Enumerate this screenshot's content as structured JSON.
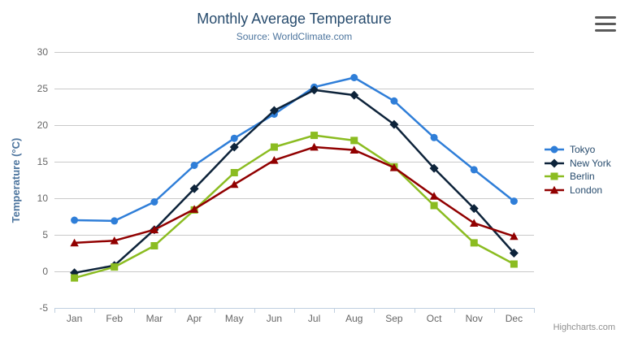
{
  "header": {
    "title": "Monthly Average Temperature",
    "subtitle": "Source: WorldClimate.com"
  },
  "credits": "Highcharts.com",
  "export_menu": {
    "icon": "hamburger-icon"
  },
  "colors": {
    "title": "#274b6d",
    "subtitle": "#4d759e",
    "axis_label": "#666666",
    "axis_title": "#4d759e",
    "grid": "#c9c9c9",
    "axis_line": "#c0d0e0",
    "legend_text": "#274b6d",
    "credits": "#909090"
  },
  "chart_data": {
    "type": "line",
    "title": "Monthly Average Temperature",
    "subtitle": "Source: WorldClimate.com",
    "categories": [
      "Jan",
      "Feb",
      "Mar",
      "Apr",
      "May",
      "Jun",
      "Jul",
      "Aug",
      "Sep",
      "Oct",
      "Nov",
      "Dec"
    ],
    "xlabel": "",
    "ylabel": "Temperature (°C)",
    "ylim": [
      -5,
      30
    ],
    "yticks": [
      -5,
      0,
      5,
      10,
      15,
      20,
      25,
      30
    ],
    "grid": true,
    "legend_position": "right",
    "series": [
      {
        "name": "Tokyo",
        "color": "#2f7ed8",
        "marker": "circle",
        "values": [
          7.0,
          6.9,
          9.5,
          14.5,
          18.2,
          21.5,
          25.2,
          26.5,
          23.3,
          18.3,
          13.9,
          9.6
        ]
      },
      {
        "name": "New York",
        "color": "#0d233a",
        "marker": "diamond",
        "values": [
          -0.2,
          0.8,
          5.7,
          11.3,
          17.0,
          22.0,
          24.8,
          24.1,
          20.1,
          14.1,
          8.6,
          2.5
        ]
      },
      {
        "name": "Berlin",
        "color": "#8bbc21",
        "marker": "square",
        "values": [
          -0.9,
          0.6,
          3.5,
          8.4,
          13.5,
          17.0,
          18.6,
          17.9,
          14.3,
          9.0,
          3.9,
          1.0
        ]
      },
      {
        "name": "London",
        "color": "#910000",
        "marker": "triangle",
        "values": [
          3.9,
          4.2,
          5.7,
          8.5,
          11.9,
          15.2,
          17.0,
          16.6,
          14.2,
          10.3,
          6.6,
          4.8
        ]
      }
    ]
  }
}
